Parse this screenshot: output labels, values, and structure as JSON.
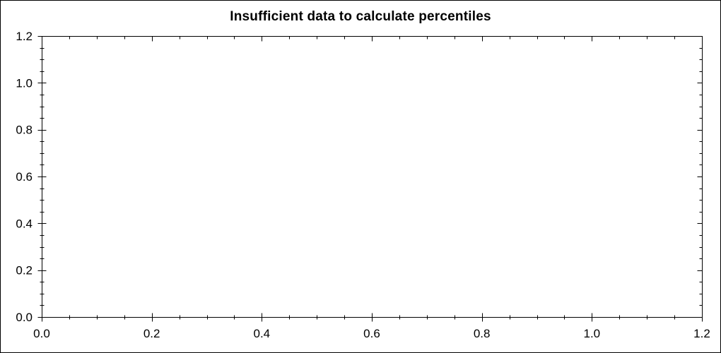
{
  "chart_data": {
    "type": "scatter",
    "title": "Insufficient data to calculate percentiles",
    "series": [],
    "x": [],
    "y": [],
    "xlabel": "",
    "ylabel": "",
    "xlim": [
      0.0,
      1.2
    ],
    "ylim": [
      0.0,
      1.2
    ],
    "x_major_tick": 0.2,
    "x_minor_tick": 0.05,
    "y_major_tick": 0.2,
    "y_minor_tick": 0.05,
    "x_tick_labels": [
      "0.0",
      "0.2",
      "0.4",
      "0.6",
      "0.8",
      "1.0",
      "1.2"
    ],
    "y_tick_labels": [
      "0.0",
      "0.2",
      "0.4",
      "0.6",
      "0.8",
      "1.0",
      "1.2"
    ],
    "grid": false,
    "legend": null,
    "tick_style": "cross-on-left-bottom, inward-on-top-right",
    "plot_bg": "#ffffff",
    "axis_color": "#000000",
    "text_color": "#000000"
  }
}
